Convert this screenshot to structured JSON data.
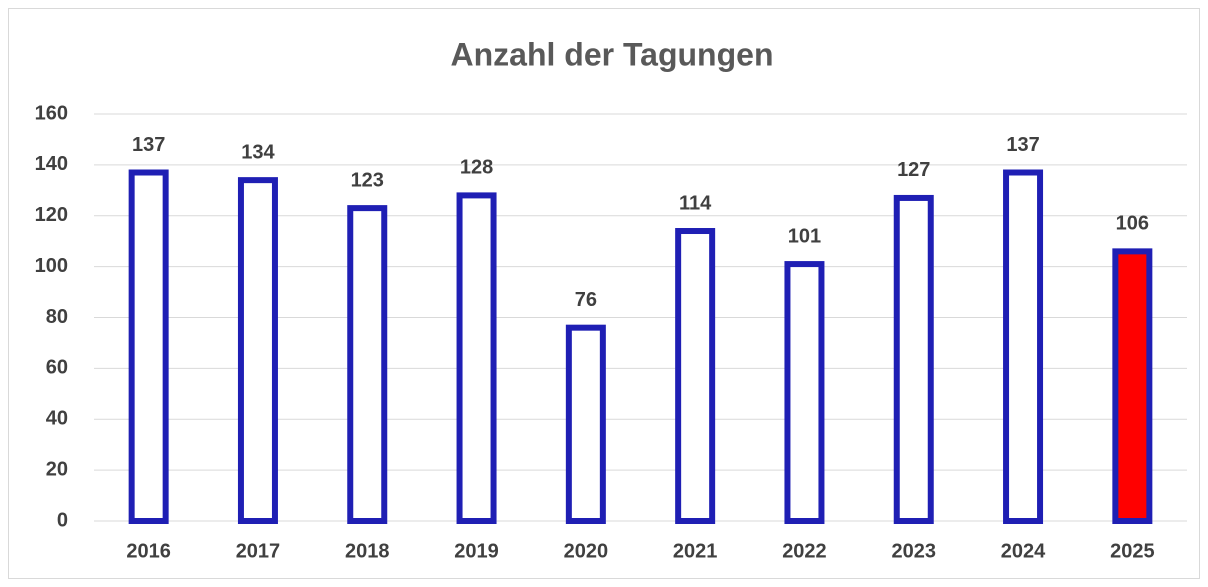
{
  "chart_data": {
    "type": "bar",
    "title": "Anzahl der Tagungen",
    "categories": [
      "2016",
      "2017",
      "2018",
      "2019",
      "2020",
      "2021",
      "2022",
      "2023",
      "2024",
      "2025"
    ],
    "values": [
      137,
      134,
      123,
      128,
      76,
      114,
      101,
      127,
      137,
      106
    ],
    "colors": [
      "#ffffff",
      "#ffffff",
      "#ffffff",
      "#ffffff",
      "#ffffff",
      "#ffffff",
      "#ffffff",
      "#ffffff",
      "#ffffff",
      "#ff0000"
    ],
    "edgecolor": "#1f1fb4",
    "ylim": [
      0,
      160
    ],
    "yticks": [
      0,
      20,
      40,
      60,
      80,
      100,
      120,
      140,
      160
    ],
    "grid": true
  }
}
